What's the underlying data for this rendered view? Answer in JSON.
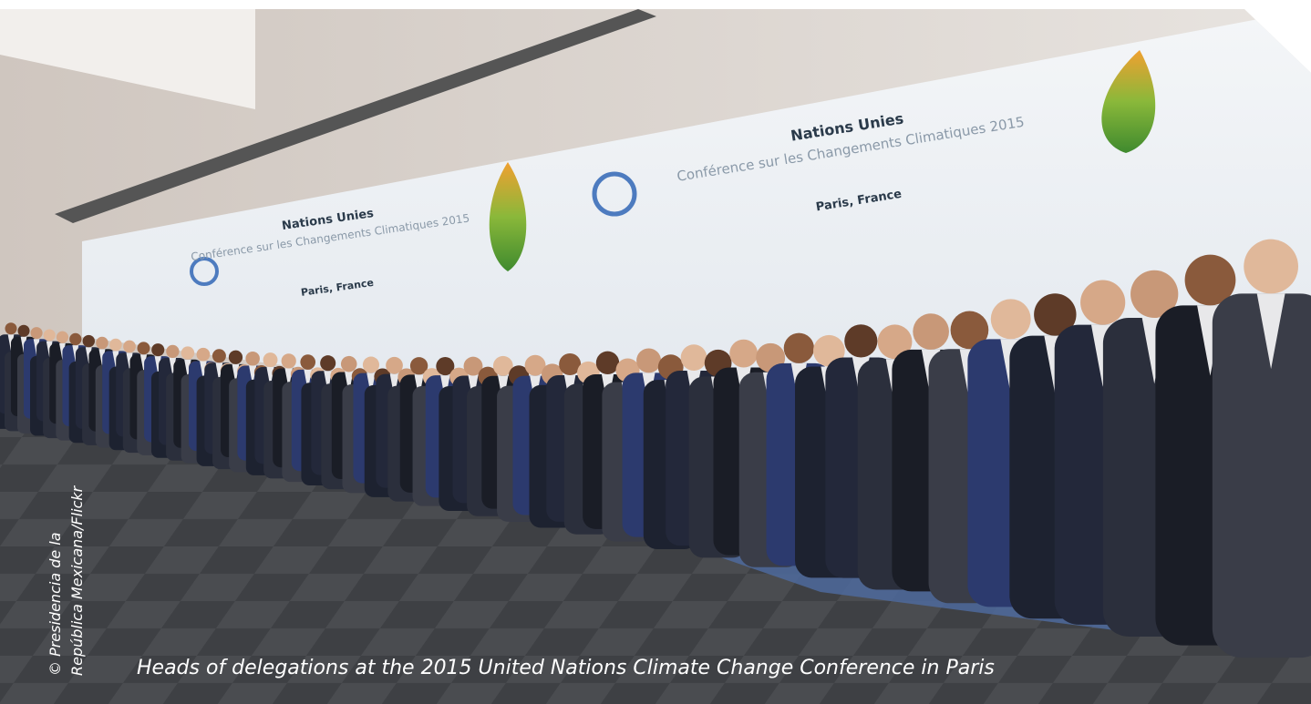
{
  "photo": {
    "caption": "Heads of delegations at the 2015 United Nations Climate Change Conference in Paris",
    "credit": [
      "© Presidencia de la",
      "República Mexicana/Flickr"
    ],
    "banners": [
      {
        "title": "Nations Unies",
        "subtitle": "Conférence sur les Changements Climatiques 2015",
        "location": "Paris, France"
      },
      {
        "title": "Nations Unies",
        "subtitle": "Conférence sur les Changements Climatiques 2015",
        "location": "Paris, France"
      }
    ]
  }
}
